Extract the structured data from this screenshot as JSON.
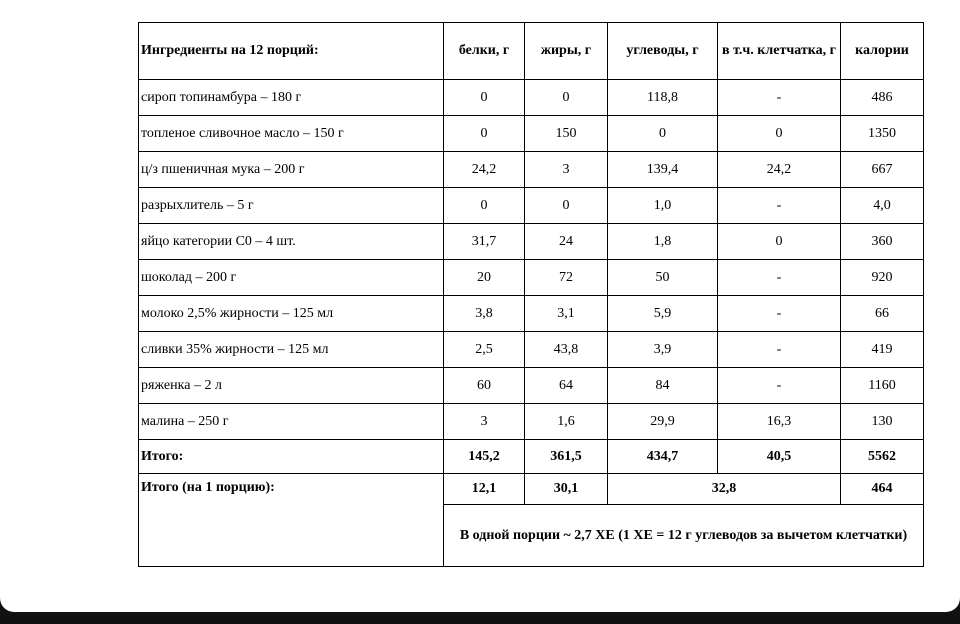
{
  "table": {
    "header": [
      "Ингредиенты на 12 порций:",
      "белки, г",
      "жиры, г",
      "углеводы, г",
      "в т.ч. клетчатка, г",
      "калории"
    ],
    "rows": [
      [
        "сироп топинамбура – 180 г",
        "0",
        "0",
        "118,8",
        "-",
        "486"
      ],
      [
        "топленое сливочное масло – 150 г",
        "0",
        "150",
        "0",
        "0",
        "1350"
      ],
      [
        "ц/з пшеничная мука – 200 г",
        "24,2",
        "3",
        "139,4",
        "24,2",
        "667"
      ],
      [
        "разрыхлитель – 5 г",
        "0",
        "0",
        "1,0",
        "-",
        "4,0"
      ],
      [
        "яйцо категории С0 – 4 шт.",
        "31,7",
        "24",
        "1,8",
        "0",
        "360"
      ],
      [
        "шоколад – 200 г",
        "20",
        "72",
        "50",
        "-",
        "920"
      ],
      [
        "молоко 2,5% жирности – 125 мл",
        "3,8",
        "3,1",
        "5,9",
        "-",
        "66"
      ],
      [
        "сливки 35% жирности – 125 мл",
        "2,5",
        "43,8",
        "3,9",
        "-",
        "419"
      ],
      [
        "ряженка – 2 л",
        "60",
        "64",
        "84",
        "-",
        "1160"
      ],
      [
        "малина – 250 г",
        "3",
        "1,6",
        "29,9",
        "16,3",
        "130"
      ]
    ],
    "total": [
      "Итого:",
      "145,2",
      "361,5",
      "434,7",
      "40,5",
      "5562"
    ],
    "per_portion": {
      "label": "Итого (на 1 порцию):",
      "values": [
        "12,1",
        "30,1",
        "32,8",
        "464"
      ]
    },
    "note": "В одной порции ~ 2,7  ХЕ (1 ХЕ = 12 г углеводов за вычетом клетчатки)"
  }
}
